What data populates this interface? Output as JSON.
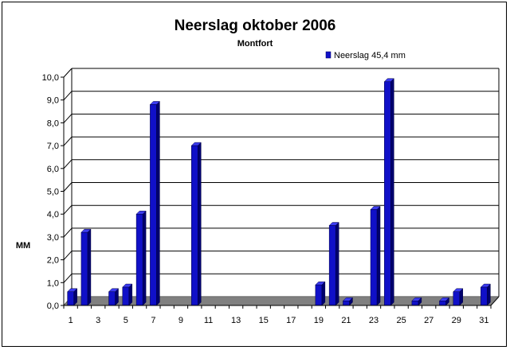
{
  "chart_data": {
    "type": "bar",
    "title": "Neerslag oktober 2006",
    "subtitle": "Montfort",
    "ylabel": "MM",
    "xlabel": "",
    "ylim": [
      0,
      10
    ],
    "y_ticks": [
      "0,0",
      "1,0",
      "2,0",
      "3,0",
      "4,0",
      "5,0",
      "6,0",
      "7,0",
      "8,0",
      "9,0",
      "10,0"
    ],
    "x_tick_labels": [
      "1",
      "3",
      "5",
      "7",
      "9",
      "11",
      "13",
      "15",
      "17",
      "19",
      "21",
      "23",
      "25",
      "27",
      "29",
      "31"
    ],
    "categories": [
      1,
      2,
      3,
      4,
      5,
      6,
      7,
      8,
      9,
      10,
      11,
      12,
      13,
      14,
      15,
      16,
      17,
      18,
      19,
      20,
      21,
      22,
      23,
      24,
      25,
      26,
      27,
      28,
      29,
      30,
      31
    ],
    "series": [
      {
        "name": "Neerslag 45,4 mm",
        "values": [
          0.6,
          3.2,
          0,
          0.6,
          0.8,
          4.0,
          8.8,
          0,
          0,
          7.0,
          0,
          0,
          0,
          0,
          0,
          0,
          0,
          0,
          0.9,
          3.5,
          0.2,
          0,
          4.2,
          9.8,
          0,
          0.2,
          0,
          0.2,
          0.6,
          0,
          0.8
        ]
      }
    ],
    "grid": true,
    "legend_position": "top-right",
    "colors": {
      "bar_front": "#1010c8",
      "bar_side": "#00006e",
      "bar_top": "#3c3cf0",
      "floor": "#808080",
      "grid": "#000000"
    }
  }
}
